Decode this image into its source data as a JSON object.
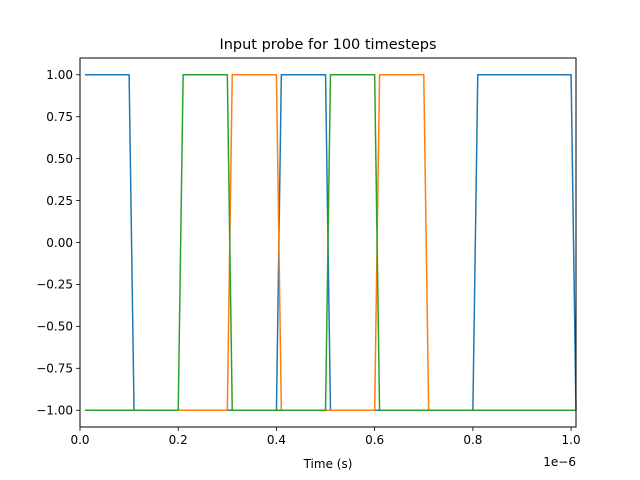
{
  "chart_data": {
    "type": "line",
    "title": "Input probe for 100 timesteps",
    "xlabel": "Time (s)",
    "ylabel": "",
    "x_offset_text": "1e−6",
    "xlim": [
      0,
      1.01
    ],
    "ylim": [
      -1.1,
      1.1
    ],
    "x_ticks": [
      0.0,
      0.2,
      0.4,
      0.6,
      0.8,
      1.0
    ],
    "x_tick_labels": [
      "0.0",
      "0.2",
      "0.4",
      "0.6",
      "0.8",
      "1.0"
    ],
    "y_ticks": [
      -1.0,
      -0.75,
      -0.5,
      -0.25,
      0.0,
      0.25,
      0.5,
      0.75,
      1.0
    ],
    "y_tick_labels": [
      "−1.00",
      "−0.75",
      "−0.50",
      "−0.25",
      "0.00",
      "0.25",
      "0.50",
      "0.75",
      "1.00"
    ],
    "grid": false,
    "legend": "none",
    "series": [
      {
        "color": "#1f77b4",
        "x": [
          0.01,
          0.1,
          0.11,
          0.4,
          0.41,
          0.5,
          0.51,
          0.8,
          0.81,
          1.0,
          1.01
        ],
        "y": [
          1,
          1,
          -1,
          -1,
          1,
          1,
          -1,
          -1,
          1,
          1,
          -1
        ]
      },
      {
        "color": "#ff7f0e",
        "x": [
          0.01,
          0.3,
          0.31,
          0.4,
          0.41,
          0.6,
          0.61,
          0.7,
          0.71,
          1.01
        ],
        "y": [
          -1,
          -1,
          1,
          1,
          -1,
          -1,
          1,
          1,
          -1,
          -1
        ]
      },
      {
        "color": "#2ca02c",
        "x": [
          0.01,
          0.2,
          0.21,
          0.3,
          0.31,
          0.5,
          0.51,
          0.6,
          0.61,
          1.01
        ],
        "y": [
          -1,
          -1,
          1,
          1,
          -1,
          -1,
          1,
          1,
          -1,
          -1
        ]
      }
    ]
  }
}
